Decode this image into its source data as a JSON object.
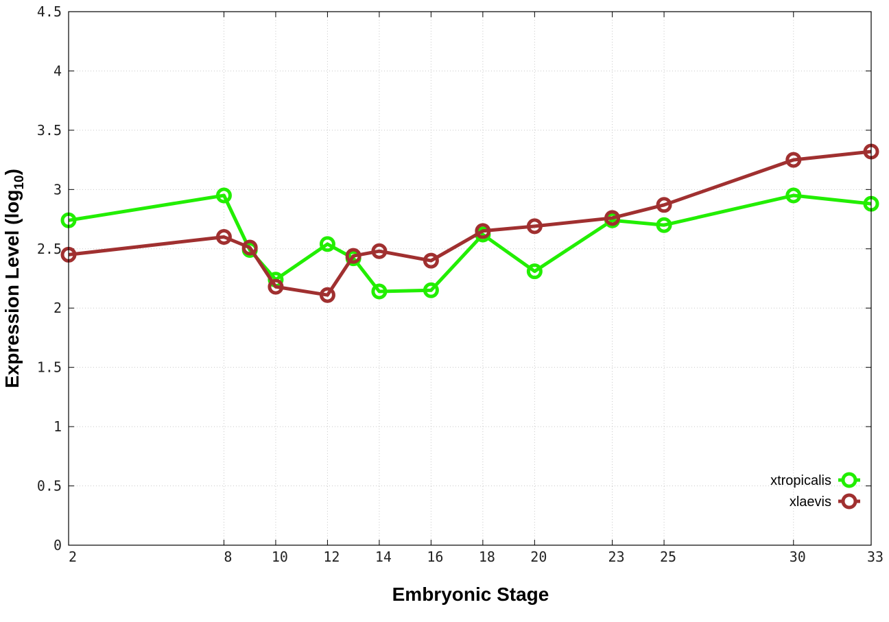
{
  "chart_data": {
    "type": "line",
    "title": "",
    "xlabel": "Embryonic Stage",
    "ylabel": "Expression Level (log",
    "ylabel_subscript": "10",
    "ylabel_suffix": ")",
    "x": [
      2,
      8,
      9,
      10,
      12,
      13,
      14,
      16,
      18,
      20,
      23,
      25,
      30,
      33
    ],
    "x_ticks": [
      "2",
      "8",
      "10",
      "12",
      "14",
      "16",
      "18",
      "20",
      "23",
      "25",
      "30",
      "33"
    ],
    "x_tick_values": [
      2,
      8,
      10,
      12,
      14,
      16,
      18,
      20,
      23,
      25,
      30,
      33
    ],
    "y_ticks": [
      "0",
      "0.5",
      "1",
      "1.5",
      "2",
      "2.5",
      "3",
      "3.5",
      "4",
      "4.5"
    ],
    "y_tick_values": [
      0,
      0.5,
      1,
      1.5,
      2,
      2.5,
      3,
      3.5,
      4,
      4.5
    ],
    "xlim": [
      2,
      33
    ],
    "ylim": [
      0,
      4.5
    ],
    "grid": true,
    "legend_position": "bottom-right",
    "series": [
      {
        "name": "xtropicalis",
        "color": "#22ee00",
        "values": [
          2.74,
          2.95,
          2.49,
          2.24,
          2.54,
          2.42,
          2.14,
          2.15,
          2.62,
          2.31,
          2.74,
          2.7,
          2.95,
          2.88
        ]
      },
      {
        "name": "xlaevis",
        "color": "#a03030",
        "values": [
          2.45,
          2.6,
          2.51,
          2.18,
          2.11,
          2.44,
          2.48,
          2.4,
          2.65,
          2.69,
          2.76,
          2.87,
          3.25,
          3.32
        ]
      }
    ]
  }
}
